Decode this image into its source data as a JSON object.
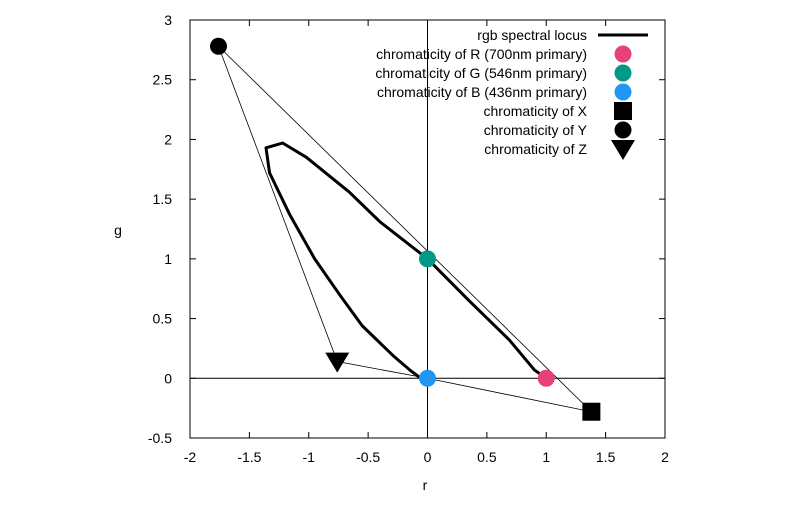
{
  "chart_data": {
    "type": "line",
    "xlabel": "r",
    "ylabel": "g",
    "xlim": [
      -2,
      2
    ],
    "ylim": [
      -0.5,
      3
    ],
    "xticks": [
      -2,
      -1.5,
      -1,
      -0.5,
      0,
      0.5,
      1,
      1.5,
      2
    ],
    "yticks": [
      -0.5,
      0,
      0.5,
      1,
      1.5,
      2,
      2.5,
      3
    ],
    "grid": false,
    "legend_position": "top-right",
    "spectral_locus": {
      "name": "rgb spectral locus",
      "color": "#000000",
      "points": [
        [
          1,
          0
        ],
        [
          0.9,
          0.07
        ],
        [
          0.69,
          0.32
        ],
        [
          0.35,
          0.65
        ],
        [
          0,
          1
        ],
        [
          -0.4,
          1.31
        ],
        [
          -0.66,
          1.56
        ],
        [
          -1.02,
          1.85
        ],
        [
          -1.22,
          1.97
        ],
        [
          -1.36,
          1.93
        ],
        [
          -1.33,
          1.72
        ],
        [
          -1.16,
          1.37
        ],
        [
          -0.95,
          1.0
        ],
        [
          -0.74,
          0.7
        ],
        [
          -0.55,
          0.44
        ],
        [
          -0.29,
          0.19
        ],
        [
          -0.15,
          0.07
        ],
        [
          -0.07,
          0.01
        ],
        [
          0,
          0
        ]
      ]
    },
    "triangle": [
      [
        -1.76,
        2.78
      ],
      [
        1.38,
        -0.28
      ],
      [
        0,
        0
      ],
      [
        -0.76,
        0.14
      ],
      [
        -1.76,
        2.78
      ]
    ],
    "markers": [
      {
        "name": "chromaticity of R (700nm primary)",
        "r": 1,
        "g": 0,
        "shape": "circle",
        "color": "#e8407a"
      },
      {
        "name": "chromaticity of G (546nm primary)",
        "r": 0,
        "g": 1,
        "shape": "circle",
        "color": "#009988"
      },
      {
        "name": "chromaticity of B (436nm primary)",
        "r": 0,
        "g": 0,
        "shape": "circle",
        "color": "#2196f3"
      },
      {
        "name": "chromaticity of X",
        "r": 1.38,
        "g": -0.28,
        "shape": "square",
        "color": "#000000"
      },
      {
        "name": "chromaticity of Y",
        "r": -1.76,
        "g": 2.78,
        "shape": "circle",
        "color": "#000000"
      },
      {
        "name": "chromaticity of Z",
        "r": -0.76,
        "g": 0.14,
        "shape": "triangle-down",
        "color": "#000000"
      }
    ]
  }
}
